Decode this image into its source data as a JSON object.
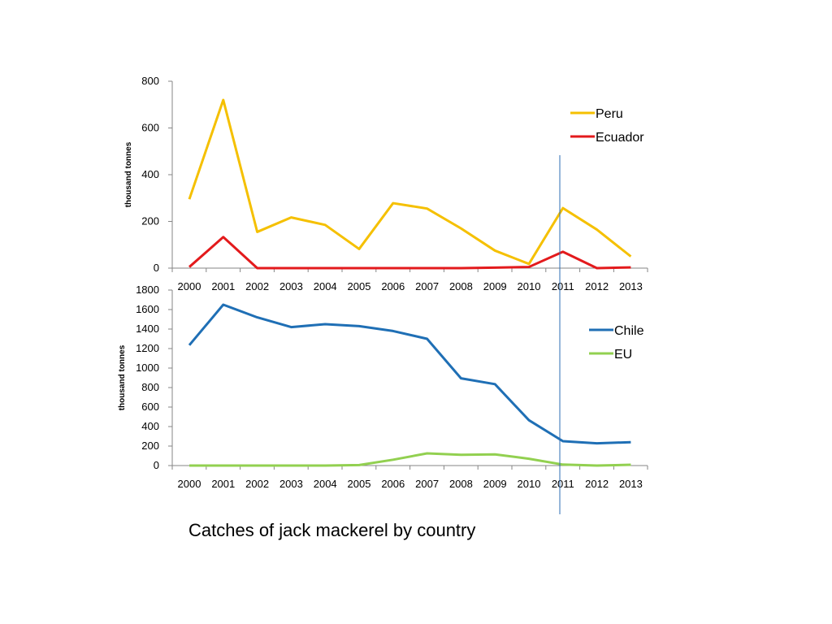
{
  "caption": "Catches of jack mackerel by country",
  "marker_color": "#2E6DB4",
  "chart_data": [
    {
      "type": "line",
      "ylabel": "thousand tonnes",
      "ylim": [
        0,
        800
      ],
      "yticks": [
        "0",
        "200",
        "400",
        "600",
        "800"
      ],
      "categories": [
        "2000",
        "2001",
        "2002",
        "2003",
        "2004",
        "2005",
        "2006",
        "2007",
        "2008",
        "2009",
        "2010",
        "2011",
        "2012",
        "2013"
      ],
      "legend_placement": "top-right",
      "grid": false,
      "series": [
        {
          "name": "Peru",
          "color": "#F5C000",
          "values": [
            295,
            720,
            155,
            217,
            185,
            82,
            278,
            255,
            170,
            75,
            18,
            257,
            165,
            50
          ]
        },
        {
          "name": "Ecuador",
          "color": "#E31A1C",
          "values": [
            5,
            133,
            0,
            0,
            0,
            0,
            0,
            0,
            0,
            2,
            5,
            70,
            0,
            3
          ]
        }
      ]
    },
    {
      "type": "line",
      "ylabel": "thousand tonnes",
      "ylim": [
        0,
        1800
      ],
      "yticks": [
        "0",
        "200",
        "400",
        "600",
        "800",
        "1000",
        "1200",
        "1400",
        "1600",
        "1800"
      ],
      "categories": [
        "2000",
        "2001",
        "2002",
        "2003",
        "2004",
        "2005",
        "2006",
        "2007",
        "2008",
        "2009",
        "2010",
        "2011",
        "2012",
        "2013"
      ],
      "legend_placement": "top-right",
      "grid": false,
      "series": [
        {
          "name": "Chile",
          "color": "#1F6FB5",
          "values": [
            1235,
            1650,
            1520,
            1420,
            1450,
            1430,
            1380,
            1300,
            895,
            835,
            465,
            250,
            228,
            240
          ]
        },
        {
          "name": "EU",
          "color": "#92D050",
          "values": [
            0,
            0,
            0,
            0,
            0,
            5,
            60,
            125,
            110,
            115,
            70,
            10,
            0,
            8
          ]
        }
      ]
    }
  ]
}
